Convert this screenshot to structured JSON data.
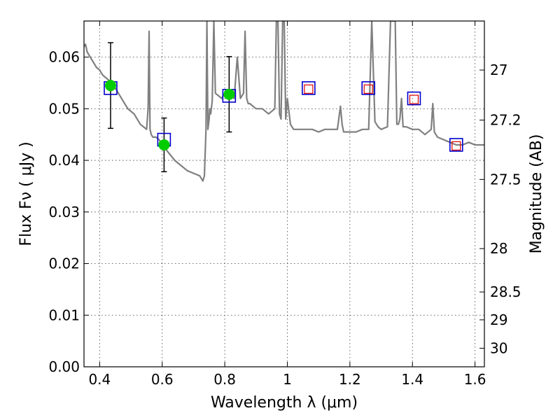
{
  "chart_data": {
    "type": "scatter",
    "title": "",
    "xlabel": "Wavelength  λ (μm)",
    "ylabel_left": "Flux  Fν  ( μJy )",
    "ylabel_right": "Magnitude (AB)",
    "xlim": [
      0.35,
      1.63
    ],
    "ylim": [
      0.0,
      0.067
    ],
    "grid": true,
    "x_ticks": [
      0.4,
      0.6,
      0.8,
      1.0,
      1.2,
      1.4,
      1.6
    ],
    "x_tick_labels": [
      "0.4",
      "0.6",
      "0.8",
      "1",
      "1.2",
      "1.4",
      "1.6"
    ],
    "y_ticks": [
      0.0,
      0.01,
      0.02,
      0.03,
      0.04,
      0.05,
      0.06
    ],
    "y_tick_labels": [
      "0.00",
      "0.01",
      "0.02",
      "0.03",
      "0.04",
      "0.05",
      "0.06"
    ],
    "right_ticks": [
      {
        "label": "27",
        "flux": 0.0575
      },
      {
        "label": "27.2",
        "flux": 0.0478
      },
      {
        "label": "27.5",
        "flux": 0.0363
      },
      {
        "label": "28",
        "flux": 0.0229
      },
      {
        "label": "28.5",
        "flux": 0.0145
      },
      {
        "label": "29",
        "flux": 0.0091
      },
      {
        "label": "30",
        "flux": 0.0036
      }
    ],
    "colors": {
      "model": "#808080",
      "observed": "#00cc00",
      "model_phot": "#0000cc",
      "predicted": "#e00000",
      "errorbar": "#000000"
    },
    "series": [
      {
        "kind": "model-spectrum",
        "x": [
          0.35,
          0.355,
          0.36,
          0.37,
          0.38,
          0.39,
          0.4,
          0.41,
          0.42,
          0.43,
          0.44,
          0.45,
          0.46,
          0.47,
          0.48,
          0.49,
          0.5,
          0.51,
          0.52,
          0.53,
          0.54,
          0.55,
          0.555,
          0.558,
          0.561,
          0.565,
          0.57,
          0.58,
          0.59,
          0.6,
          0.62,
          0.64,
          0.66,
          0.68,
          0.7,
          0.72,
          0.73,
          0.735,
          0.74,
          0.743,
          0.746,
          0.75,
          0.752,
          0.755,
          0.76,
          0.765,
          0.77,
          0.78,
          0.79,
          0.8,
          0.81,
          0.82,
          0.83,
          0.84,
          0.85,
          0.86,
          0.865,
          0.87,
          0.875,
          0.88,
          0.9,
          0.92,
          0.94,
          0.96,
          0.965,
          0.97,
          0.975,
          0.98,
          0.985,
          0.99,
          0.995,
          1.0,
          1.01,
          1.02,
          1.04,
          1.06,
          1.08,
          1.1,
          1.12,
          1.14,
          1.16,
          1.17,
          1.175,
          1.18,
          1.2,
          1.22,
          1.24,
          1.26,
          1.27,
          1.28,
          1.29,
          1.3,
          1.32,
          1.33,
          1.34,
          1.345,
          1.35,
          1.355,
          1.36,
          1.365,
          1.37,
          1.38,
          1.4,
          1.42,
          1.44,
          1.46,
          1.465,
          1.47,
          1.48,
          1.5,
          1.52,
          1.54,
          1.56,
          1.58,
          1.6,
          1.63
        ],
        "y": [
          0.062,
          0.0625,
          0.061,
          0.06,
          0.059,
          0.058,
          0.0575,
          0.0565,
          0.056,
          0.0555,
          0.0545,
          0.054,
          0.053,
          0.052,
          0.051,
          0.05,
          0.0495,
          0.049,
          0.048,
          0.047,
          0.0465,
          0.046,
          0.05,
          0.065,
          0.046,
          0.045,
          0.0445,
          0.0445,
          0.044,
          0.043,
          0.0415,
          0.04,
          0.039,
          0.038,
          0.0375,
          0.037,
          0.036,
          0.037,
          0.046,
          0.067,
          0.046,
          0.048,
          0.05,
          0.049,
          0.0515,
          0.067,
          0.053,
          0.0525,
          0.052,
          0.053,
          0.053,
          0.0525,
          0.052,
          0.06,
          0.052,
          0.053,
          0.065,
          0.052,
          0.051,
          0.051,
          0.05,
          0.05,
          0.049,
          0.05,
          0.067,
          0.067,
          0.049,
          0.048,
          0.067,
          0.067,
          0.048,
          0.052,
          0.047,
          0.046,
          0.046,
          0.046,
          0.046,
          0.0455,
          0.046,
          0.046,
          0.046,
          0.0505,
          0.047,
          0.0455,
          0.0455,
          0.0455,
          0.046,
          0.046,
          0.067,
          0.0475,
          0.0465,
          0.046,
          0.0465,
          0.067,
          0.067,
          0.067,
          0.047,
          0.047,
          0.048,
          0.052,
          0.0465,
          0.0465,
          0.046,
          0.046,
          0.045,
          0.046,
          0.051,
          0.0455,
          0.0445,
          0.044,
          0.0435,
          0.043,
          0.043,
          0.0435,
          0.043,
          0.043
        ]
      },
      {
        "kind": "observed-photometry",
        "x": [
          0.435,
          0.606,
          0.814
        ],
        "y": [
          0.0545,
          0.043,
          0.0528
        ],
        "yerr": [
          0.0083,
          0.0052,
          0.0073
        ]
      },
      {
        "kind": "model-photometry",
        "x": [
          0.435,
          0.606,
          0.814,
          1.068,
          1.259,
          1.405,
          1.54
        ],
        "y": [
          0.054,
          0.044,
          0.0525,
          0.054,
          0.054,
          0.052,
          0.043
        ]
      },
      {
        "kind": "predicted-photometry",
        "x": [
          1.068,
          1.259,
          1.405,
          1.54
        ],
        "y": [
          0.0538,
          0.0538,
          0.0518,
          0.0428
        ]
      }
    ]
  }
}
